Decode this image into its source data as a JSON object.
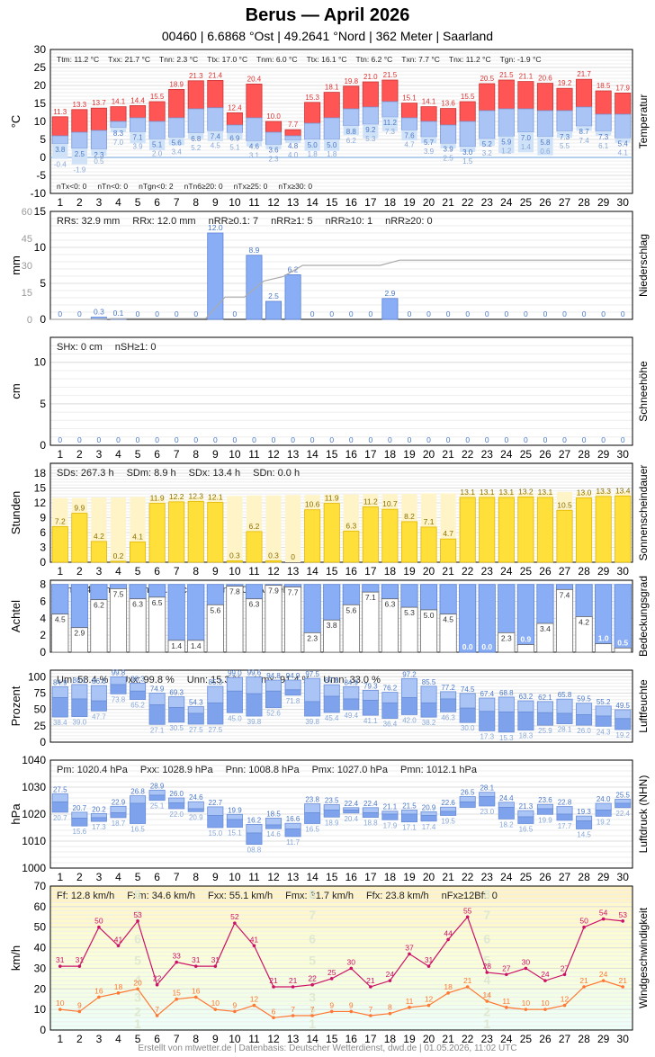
{
  "header": {
    "title": "Berus  —  April 2026",
    "subtitle": "00460  |  6.6868 °Ost  |  49.2641 °Nord  |  362 Meter  |  Saarland"
  },
  "footer": "Erstellt von mtwetter.de | Datenbasis: Deutscher Wetterdienst, dwd.de | 01.05.2026, 11:02 UTC",
  "days": [
    1,
    2,
    3,
    4,
    5,
    6,
    7,
    8,
    9,
    10,
    11,
    12,
    13,
    14,
    15,
    16,
    17,
    18,
    19,
    20,
    21,
    22,
    23,
    24,
    25,
    26,
    27,
    28,
    29,
    30
  ],
  "chart_data": [
    {
      "type": "bar",
      "id": "temp",
      "ylabel": "°C",
      "side_label": "Temperatur",
      "ylim": [
        -10,
        30
      ],
      "yticks": [
        -10,
        -5,
        0,
        5,
        10,
        15,
        20,
        25,
        30
      ],
      "stats": [
        "Ttm: 11.2 °C",
        "Txx: 21.7 °C",
        "Tnn: 2.3 °C",
        "Ttx: 17.0 °C",
        "Tnm: 6.0 °C",
        "Ttx: 16.1 °C",
        "Ttn: 6.2 °C",
        "Txn: 7.7 °C",
        "Tnx: 11.2 °C",
        "Tgn: -1.9 °C"
      ],
      "counts": [
        "nTx<0: 0",
        "nTn<0: 0",
        "nTgn<0: 2",
        "nTn6≥20: 0",
        "nTx≥25: 0",
        "nTx≥30: 0"
      ],
      "tmax": [
        11.3,
        13.3,
        13.7,
        14.1,
        14.4,
        15.5,
        18.9,
        21.3,
        21.4,
        12.4,
        20.4,
        10.0,
        7.7,
        15.3,
        18.1,
        19.8,
        21.0,
        21.5,
        15.1,
        14.1,
        13.6,
        15.5,
        20.5,
        21.5,
        21.1,
        20.6,
        19.2,
        21.7,
        18.5,
        17.9
      ],
      "tmean": [
        6.0,
        7.0,
        7.5,
        10.0,
        11.0,
        10.0,
        11.0,
        13.5,
        13.8,
        9.0,
        11.0,
        7.0,
        6.0,
        9.5,
        11.0,
        13.5,
        14.0,
        15.5,
        11.0,
        10.0,
        9.0,
        10.0,
        13.0,
        13.5,
        13.5,
        13.0,
        13.0,
        14.0,
        12.0,
        12.0
      ],
      "tmin": [
        3.8,
        2.5,
        2.3,
        8.3,
        7.1,
        5.1,
        5.6,
        6.8,
        7.4,
        6.9,
        4.6,
        3.6,
        4.8,
        5.0,
        5.0,
        8.8,
        9.2,
        11.2,
        7.6,
        5.7,
        3.9,
        3.0,
        5.2,
        5.9,
        7.0,
        5.8,
        7.3,
        8.7,
        7.3,
        5.4
      ],
      "tmin_label2": [
        null,
        null,
        null,
        7.0,
        3.9,
        2.0,
        3.4,
        5.2,
        4.5,
        5.1,
        3.1,
        2.3,
        4.0,
        1.8,
        1.8,
        6.2,
        5.3,
        7.3,
        4.7,
        3.9,
        2.5,
        1.5,
        3.2,
        1.2,
        1.4,
        0.6,
        5.5,
        7.4,
        6.1,
        4.1
      ],
      "tground": [
        -0.4,
        -1.9,
        0.5,
        null,
        null,
        null,
        null,
        null,
        null,
        null,
        null,
        null,
        null,
        null,
        null,
        null,
        null,
        null,
        null,
        null,
        null,
        null,
        null,
        null,
        null,
        null,
        null,
        null,
        null,
        null
      ]
    },
    {
      "type": "bar",
      "id": "precip",
      "ylabel": "mm",
      "side_label": "Niederschlag",
      "ylim": [
        0,
        15
      ],
      "yticks": [
        0,
        5,
        10,
        15
      ],
      "cum_ticks": [
        0,
        15,
        30,
        45,
        60
      ],
      "stats": [
        "RRs: 32.9 mm",
        "RRx: 12.0 mm",
        "nRR≥0.1: 7",
        "nRR≥1: 5",
        "nRR≥10: 1",
        "nRR≥20: 0"
      ],
      "values": [
        0,
        0,
        0.3,
        0.1,
        0,
        0,
        0,
        0,
        12.0,
        0,
        8.9,
        2.5,
        6.2,
        0,
        0,
        0,
        0,
        2.9,
        0,
        0,
        0,
        0,
        0,
        0,
        0,
        0,
        0,
        0,
        0,
        0
      ],
      "labels": [
        "0",
        "0",
        "0.3",
        "0.1",
        "0",
        "0",
        "0",
        "0",
        "12.0",
        "0",
        "8.9",
        "2.5",
        "6.2",
        "0",
        "0",
        "0",
        "0",
        "2.9",
        "0",
        "0",
        "0",
        "0",
        "0",
        "0",
        "0",
        "0",
        "0",
        "0",
        "0",
        "0"
      ]
    },
    {
      "type": "bar",
      "id": "snow",
      "ylabel": "cm",
      "side_label": "Schneehöhe",
      "ylim": [
        0,
        13
      ],
      "yticks": [
        0,
        5,
        10
      ],
      "stats": [
        "SHx: 0 cm",
        "nSH≥1: 0"
      ],
      "values": [
        0,
        0,
        0,
        0,
        0,
        0,
        0,
        0,
        0,
        0,
        0,
        0,
        0,
        0,
        0,
        0,
        0,
        0,
        0,
        0,
        0,
        0,
        0,
        0,
        0,
        0,
        0,
        0,
        0,
        0
      ],
      "labels": [
        "0",
        "0",
        "0",
        "0",
        "0",
        "0",
        "0",
        "0",
        "0",
        "0",
        "0",
        "0",
        "0",
        "0",
        "0",
        "0",
        "0",
        "0",
        "0",
        "0",
        "0",
        "0",
        "0",
        "0",
        "0",
        "0",
        "0",
        "0",
        "0",
        "0"
      ]
    },
    {
      "type": "bar",
      "id": "sun",
      "ylabel": "Stunden",
      "side_label": "Sonnenscheindauer",
      "ylim": [
        0,
        20
      ],
      "yticks": [
        0,
        3,
        6,
        9,
        12,
        15,
        18
      ],
      "stats": [
        "SDs: 267.3 h",
        "SDm: 8.9 h",
        "SDx: 13.4 h",
        "SDn: 0.0 h"
      ],
      "possible": [
        13.0,
        13.0,
        13.1,
        13.1,
        13.2,
        13.2,
        13.3,
        13.3,
        13.4,
        13.4,
        13.5,
        13.5,
        13.6,
        13.6,
        13.7,
        13.7,
        13.8,
        13.8,
        13.8,
        13.9,
        13.9,
        14.0,
        14.0,
        14.1,
        14.1,
        14.1,
        14.2,
        14.2,
        14.3,
        14.3
      ],
      "values": [
        7.2,
        9.9,
        4.2,
        0.2,
        4.1,
        11.9,
        12.2,
        12.3,
        12.1,
        0.3,
        6.2,
        0.3,
        0,
        10.6,
        11.9,
        6.3,
        11.2,
        10.7,
        8.2,
        7.1,
        4.7,
        13.1,
        13.1,
        13.1,
        13.2,
        13.1,
        10.5,
        13.0,
        13.3,
        13.4
      ],
      "labels": [
        "7.2",
        "9.9",
        "4.2",
        "0.2",
        "4.1",
        "11.9",
        "12.2",
        "12.3",
        "12.1",
        "0.3",
        "6.2",
        "0.3",
        "0",
        "10.6",
        "11.9",
        "6.3",
        "11.2",
        "10.7",
        "8.2",
        "7.1",
        "4.7",
        "13.1",
        "13.1",
        "13.1",
        "13.2",
        "13.1",
        "10.5",
        "13.0",
        "13.3",
        "13.4"
      ]
    },
    {
      "type": "bar",
      "id": "cloud",
      "ylabel": "Achtel",
      "side_label": "Bedeckungsgrad",
      "ylim": [
        0,
        8.5
      ],
      "yticks": [
        0,
        2,
        4,
        6,
        8
      ],
      "stats": [
        "Nm: 4.4 Achtel",
        "Nmx: 7.9 Achtel",
        "Nmn: 0.0 Achtel"
      ],
      "values": [
        4.5,
        2.9,
        6.2,
        7.5,
        6.3,
        6.5,
        1.4,
        1.4,
        5.6,
        7.8,
        6.3,
        7.9,
        7.7,
        2.3,
        3.8,
        5.6,
        7.1,
        6.3,
        5.3,
        5.0,
        4.5,
        0.0,
        0.0,
        2.3,
        0.9,
        3.4,
        7.4,
        4.2,
        1.0,
        0.5
      ],
      "labels": [
        "4.5",
        "2.9",
        "6.2",
        "7.5",
        "6.3",
        "6.5",
        "1.4",
        "1.4",
        "5.6",
        "7.8",
        "6.3",
        "7.9",
        "7.7",
        "2.3",
        "3.8",
        "5.6",
        "7.1",
        "6.3",
        "5.3",
        "5.0",
        "4.5",
        "0.0",
        "0.0",
        "2.3",
        "0.9",
        "3.4",
        "7.4",
        "4.2",
        "1.0",
        "0.5"
      ]
    },
    {
      "type": "bar",
      "id": "humid",
      "ylabel": "Prozent",
      "side_label": "Luftfeuchte",
      "ylim": [
        0,
        110
      ],
      "yticks": [
        0,
        25,
        50,
        75,
        100
      ],
      "stats": [
        "Um: 58.4 %",
        "Uxx: 99.8 %",
        "Unn: 15.3 %",
        "Umx: 91.4 %",
        "Umn: 33.0 %"
      ],
      "umax": [
        84.9,
        88.1,
        86.6,
        99.8,
        90.3,
        74.9,
        69.3,
        54.3,
        85.3,
        99.0,
        99.6,
        94.8,
        94.9,
        97.5,
        87.8,
        84.9,
        79.3,
        76.2,
        97.2,
        85.5,
        77.2,
        74.5,
        67.4,
        68.8,
        63.2,
        62.1,
        65.8,
        59.5,
        55.2,
        49.5
      ],
      "umean": [
        68,
        66,
        63,
        88,
        78,
        57,
        53,
        44,
        60,
        78,
        74,
        78,
        80,
        62,
        70,
        66,
        64,
        60,
        68,
        60,
        66,
        52,
        47,
        46,
        46,
        45,
        44,
        42,
        40,
        36
      ],
      "umin": [
        38.4,
        39.0,
        47.7,
        73.8,
        65.2,
        27.1,
        30.5,
        27.5,
        27.5,
        45.0,
        39.8,
        52.6,
        71.8,
        39.8,
        45.4,
        49.4,
        41.1,
        36.4,
        42.0,
        38.2,
        46.3,
        30.0,
        17.3,
        15.3,
        18.3,
        25.9,
        28.1,
        26.0,
        24.3,
        19.2
      ],
      "umax_labels": [
        "84.9",
        "88.1",
        "86.6",
        "99.8",
        "90.3",
        "74.9",
        "69.3",
        "54.3",
        "85.3",
        "99.0",
        "99.6",
        "94.8",
        "94.9",
        "97.5",
        "87.8",
        "84.9",
        "79.3",
        "76.2",
        "97.2",
        "85.5",
        "77.2",
        "74.5",
        "67.4",
        "68.8",
        "63.2",
        "62.1",
        "65.8",
        "59.5",
        "55.2",
        "49.5"
      ],
      "umin_labels": [
        "38.4",
        "39.0",
        "47.7",
        "73.8",
        "65.2",
        "27.1",
        "30.5",
        "27.5",
        "27.5",
        "45.0",
        "39.8",
        "52.6",
        "71.8",
        "39.8",
        "45.4",
        "49.4",
        "41.1",
        "36.4",
        "42.0",
        "38.2",
        "46.3",
        "30.0",
        "17.3",
        "15.3",
        "18.3",
        "25.9",
        "28.1",
        "26.0",
        "24.3",
        "19.2"
      ]
    },
    {
      "type": "bar",
      "id": "press",
      "ylabel": "hPa",
      "side_label": "Luftdruck (NHN)",
      "ylim": [
        1000,
        1040
      ],
      "yticks": [
        1000,
        1010,
        1020,
        1030,
        1040
      ],
      "stats": [
        "Pm: 1020.4 hPa",
        "Pxx: 1028.9 hPa",
        "Pnn: 1008.8 hPa",
        "Pmx: 1027.0 hPa",
        "Pmn: 1012.1 hPa"
      ],
      "pmax": [
        1027.5,
        1020.7,
        1020.2,
        1022.9,
        1026.8,
        1028.9,
        1026.0,
        1024.6,
        1022.7,
        1019.9,
        1016.2,
        1018.5,
        1016.6,
        1023.8,
        1023.5,
        1022.4,
        1022.4,
        1021.1,
        1021.5,
        1020.9,
        1022.6,
        1026.5,
        1028.1,
        1024.4,
        1021.3,
        1023.6,
        1022.8,
        1019.3,
        1024.0,
        1025.5
      ],
      "pmean": [
        1024.5,
        1018.5,
        1018.7,
        1020.5,
        1024.0,
        1027.0,
        1024.2,
        1022.0,
        1019.5,
        1018.0,
        1013.0,
        1016.0,
        1014.5,
        1020.5,
        1021.5,
        1021.5,
        1020.5,
        1020.0,
        1020.0,
        1019.5,
        1021.0,
        1024.5,
        1026.5,
        1022.5,
        1019.0,
        1022.0,
        1020.0,
        1017.5,
        1021.5,
        1024.0
      ],
      "pmin": [
        1020.7,
        1015.6,
        1017.3,
        1018.7,
        1016.5,
        1025.1,
        1022.0,
        1020.9,
        1015.0,
        1015.1,
        1008.8,
        1014.6,
        1011.7,
        1016.5,
        1018.9,
        1020.4,
        1018.8,
        1017.9,
        1017.1,
        1017.4,
        1019.5,
        1022.5,
        1023.0,
        1018.2,
        1016.5,
        1019.9,
        1017.7,
        1014.5,
        1019.2,
        1022.4
      ],
      "pmax_labels": [
        "27.5",
        "20.7",
        "20.2",
        "22.9",
        "26.8",
        "28.9",
        "26.0",
        "24.6",
        "22.7",
        "19.9",
        "16.2",
        "18.5",
        "16.6",
        "23.8",
        "23.5",
        "22.4",
        "22.4",
        "21.1",
        "21.5",
        "20.9",
        "22.6",
        "26.5",
        "28.1",
        "24.4",
        "21.3",
        "23.6",
        "22.8",
        "19.3",
        "24.0",
        "25.5"
      ],
      "pmin_labels": [
        "20.7",
        "15.6",
        "17.3",
        "18.7",
        "16.5",
        "25.1",
        "22.0",
        "20.9",
        "15.0",
        "15.1",
        "08.8",
        "14.6",
        "11.7",
        "16.5",
        "18.9",
        "20.4",
        "18.8",
        "17.9",
        "17.1",
        "17.4",
        "19.5",
        "",
        "23.0",
        "18.2",
        "16.5",
        "19.9",
        "17.7",
        "14.5",
        "19.2",
        "22.4"
      ]
    },
    {
      "type": "line",
      "id": "wind",
      "ylabel": "km/h",
      "side_label": "Windgeschwindigkeit",
      "ylim": [
        0,
        70
      ],
      "yticks": [
        0,
        10,
        20,
        30,
        40,
        50,
        60,
        70
      ],
      "beaufort_labels": [
        "1",
        "2",
        "3",
        "4",
        "5",
        "6",
        "7",
        "8"
      ],
      "stats": [
        "Ff: 12.8 km/h",
        "Fxm: 34.6 km/h",
        "Fxx: 55.1 km/h",
        "Fmx: 31.7 km/h",
        "Ffx: 23.8 km/h",
        "nFx≥12Bft: 0"
      ],
      "series": [
        {
          "name": "Fx",
          "color": "#cc1166",
          "values": [
            31,
            31,
            50,
            41,
            53,
            22,
            33,
            31,
            31,
            52,
            41,
            21,
            21,
            22,
            25,
            30,
            21,
            24,
            37,
            31,
            44,
            55,
            28,
            27,
            30,
            24,
            27,
            50,
            54,
            53
          ]
        },
        {
          "name": "Ff",
          "color": "#ff7733",
          "values": [
            10,
            9,
            16,
            18,
            20,
            7,
            15,
            16,
            10,
            9,
            12,
            6,
            7,
            7,
            9,
            9,
            7,
            8,
            11,
            12,
            18,
            21,
            14,
            11,
            10,
            10,
            12,
            21,
            24,
            21
          ]
        }
      ]
    }
  ],
  "colors": {
    "tmax": "#ff5555",
    "tmean": "#aac4f6",
    "tmin": "#cfe2f8",
    "precip": "#8aaef5",
    "sun": "#ffe03a",
    "sun_possible": "#fff4c8",
    "cloud": "#8aaef5",
    "humid_max": "#aac4f6",
    "humid_min": "#7ea3ec",
    "press_max": "#aac4f6",
    "press_min": "#7ea3ec"
  }
}
